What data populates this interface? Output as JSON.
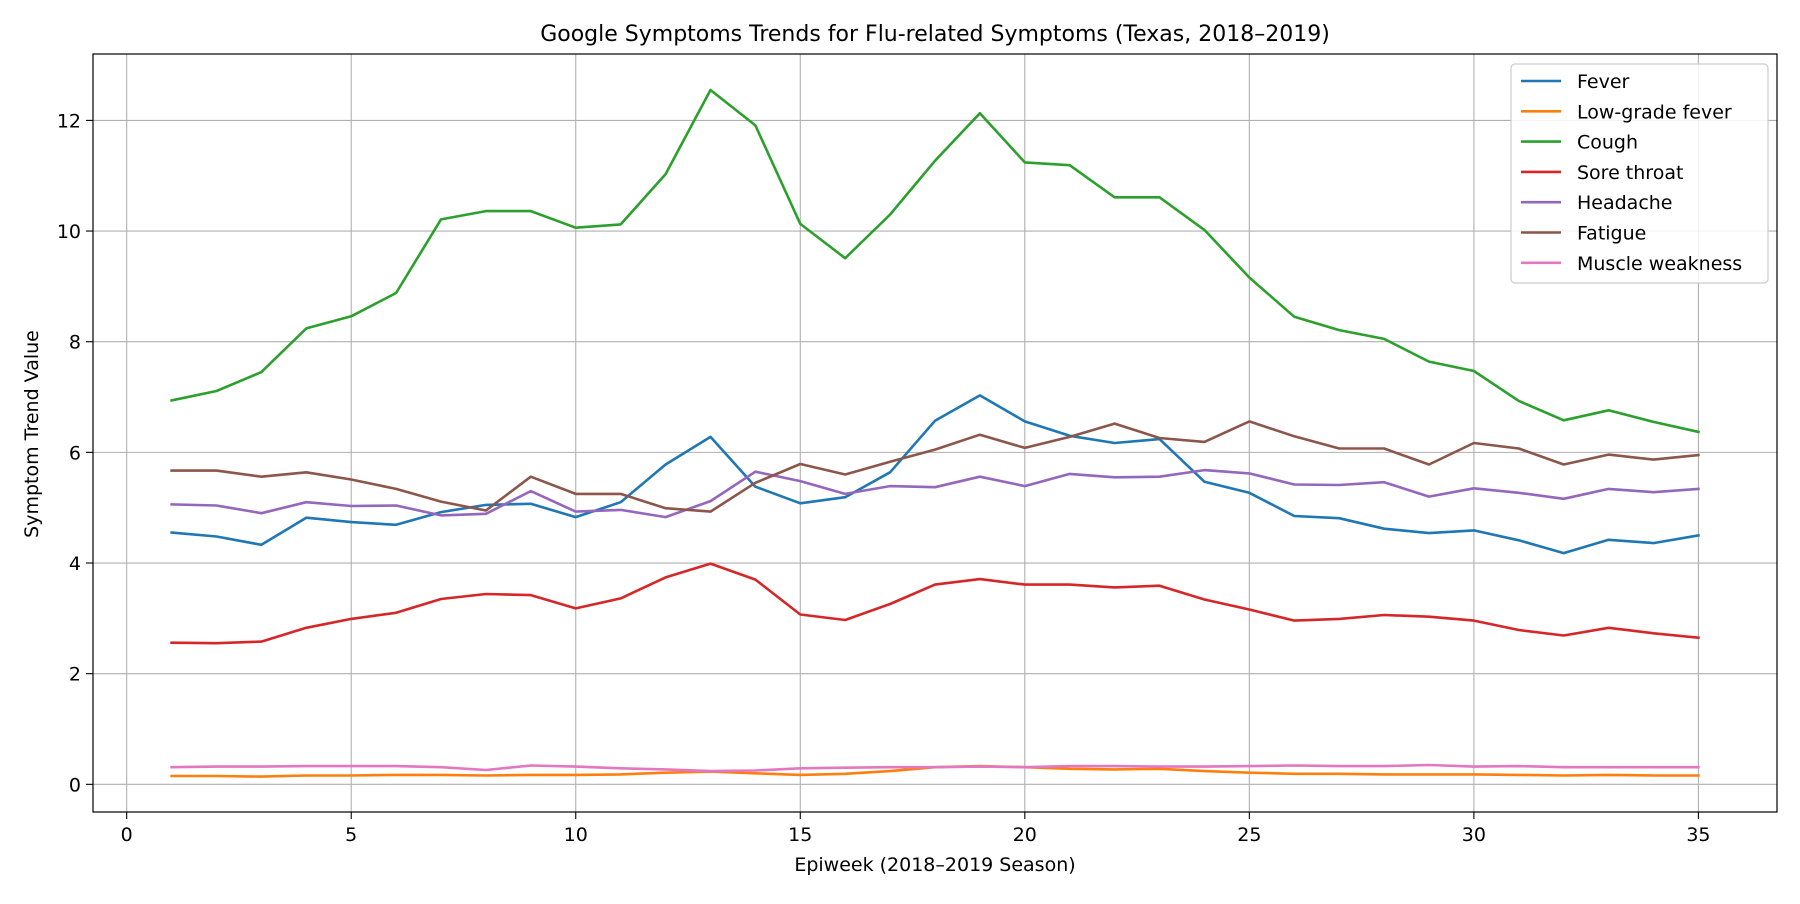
{
  "chart_data": {
    "type": "line",
    "title": "Google Symptoms Trends for Flu-related Symptoms (Texas, 2018–2019)",
    "xlabel": "Epiweek (2018–2019 Season)",
    "ylabel": "Symptom Trend Value",
    "xlim": [
      -0.75,
      36.75
    ],
    "ylim": [
      -0.5,
      13.2
    ],
    "xticks": [
      0,
      5,
      10,
      15,
      20,
      25,
      30,
      35
    ],
    "yticks": [
      0,
      2,
      4,
      6,
      8,
      10,
      12
    ],
    "grid": true,
    "legend_position": "top-right",
    "x": [
      1,
      2,
      3,
      4,
      5,
      6,
      7,
      8,
      9,
      10,
      11,
      12,
      13,
      14,
      15,
      16,
      17,
      18,
      19,
      20,
      21,
      22,
      23,
      24,
      25,
      26,
      27,
      28,
      29,
      30,
      31,
      32,
      33,
      34,
      35
    ],
    "series": [
      {
        "name": "Fever",
        "color": "#1f77b4",
        "values": [
          4.55,
          4.48,
          4.33,
          4.82,
          4.74,
          4.69,
          4.92,
          5.05,
          5.07,
          4.83,
          5.1,
          5.78,
          6.28,
          5.38,
          5.08,
          5.19,
          5.64,
          6.57,
          7.03,
          6.56,
          6.3,
          6.17,
          6.24,
          5.47,
          5.27,
          4.85,
          4.81,
          4.62,
          4.54,
          4.59,
          4.41,
          4.18,
          4.42,
          4.36,
          4.5
        ]
      },
      {
        "name": "Low-grade fever",
        "color": "#ff7f0e",
        "values": [
          0.15,
          0.15,
          0.14,
          0.16,
          0.16,
          0.17,
          0.17,
          0.16,
          0.17,
          0.17,
          0.18,
          0.21,
          0.23,
          0.2,
          0.17,
          0.19,
          0.24,
          0.31,
          0.33,
          0.31,
          0.28,
          0.27,
          0.28,
          0.24,
          0.21,
          0.19,
          0.19,
          0.18,
          0.18,
          0.18,
          0.17,
          0.16,
          0.17,
          0.16,
          0.16
        ]
      },
      {
        "name": "Cough",
        "color": "#2ca02c",
        "values": [
          6.94,
          7.11,
          7.45,
          8.24,
          8.46,
          8.88,
          10.21,
          10.36,
          10.36,
          10.06,
          10.12,
          11.03,
          12.55,
          11.91,
          10.13,
          9.51,
          10.3,
          11.27,
          12.13,
          11.24,
          11.19,
          10.61,
          10.61,
          10.02,
          9.16,
          8.45,
          8.21,
          8.05,
          7.64,
          7.47,
          6.93,
          6.58,
          6.76,
          6.55,
          6.37
        ]
      },
      {
        "name": "Sore throat",
        "color": "#d62728",
        "values": [
          2.56,
          2.55,
          2.58,
          2.83,
          2.99,
          3.1,
          3.35,
          3.44,
          3.42,
          3.18,
          3.36,
          3.74,
          3.99,
          3.7,
          3.07,
          2.97,
          3.26,
          3.61,
          3.71,
          3.61,
          3.61,
          3.56,
          3.59,
          3.34,
          3.16,
          2.96,
          2.99,
          3.06,
          3.03,
          2.96,
          2.79,
          2.69,
          2.83,
          2.73,
          2.65
        ]
      },
      {
        "name": "Headache",
        "color": "#9467bd",
        "values": [
          5.06,
          5.04,
          4.9,
          5.1,
          5.03,
          5.04,
          4.86,
          4.89,
          5.3,
          4.93,
          4.96,
          4.83,
          5.12,
          5.65,
          5.48,
          5.25,
          5.39,
          5.37,
          5.56,
          5.39,
          5.61,
          5.55,
          5.56,
          5.68,
          5.62,
          5.42,
          5.41,
          5.46,
          5.2,
          5.35,
          5.27,
          5.16,
          5.34,
          5.28,
          5.34
        ]
      },
      {
        "name": "Fatigue",
        "color": "#8c564b",
        "values": [
          5.67,
          5.67,
          5.56,
          5.64,
          5.51,
          5.34,
          5.11,
          4.95,
          5.56,
          5.25,
          5.25,
          4.99,
          4.93,
          5.45,
          5.79,
          5.6,
          5.83,
          6.05,
          6.32,
          6.08,
          6.28,
          6.52,
          6.26,
          6.19,
          6.56,
          6.29,
          6.07,
          6.07,
          5.78,
          6.17,
          6.07,
          5.78,
          5.96,
          5.87,
          5.95
        ]
      },
      {
        "name": "Muscle weakness",
        "color": "#e377c2",
        "values": [
          0.31,
          0.32,
          0.32,
          0.33,
          0.33,
          0.33,
          0.31,
          0.26,
          0.34,
          0.32,
          0.29,
          0.27,
          0.24,
          0.25,
          0.29,
          0.3,
          0.31,
          0.31,
          0.32,
          0.31,
          0.33,
          0.33,
          0.32,
          0.32,
          0.33,
          0.34,
          0.33,
          0.33,
          0.35,
          0.32,
          0.33,
          0.31,
          0.31,
          0.31,
          0.31
        ]
      }
    ]
  }
}
